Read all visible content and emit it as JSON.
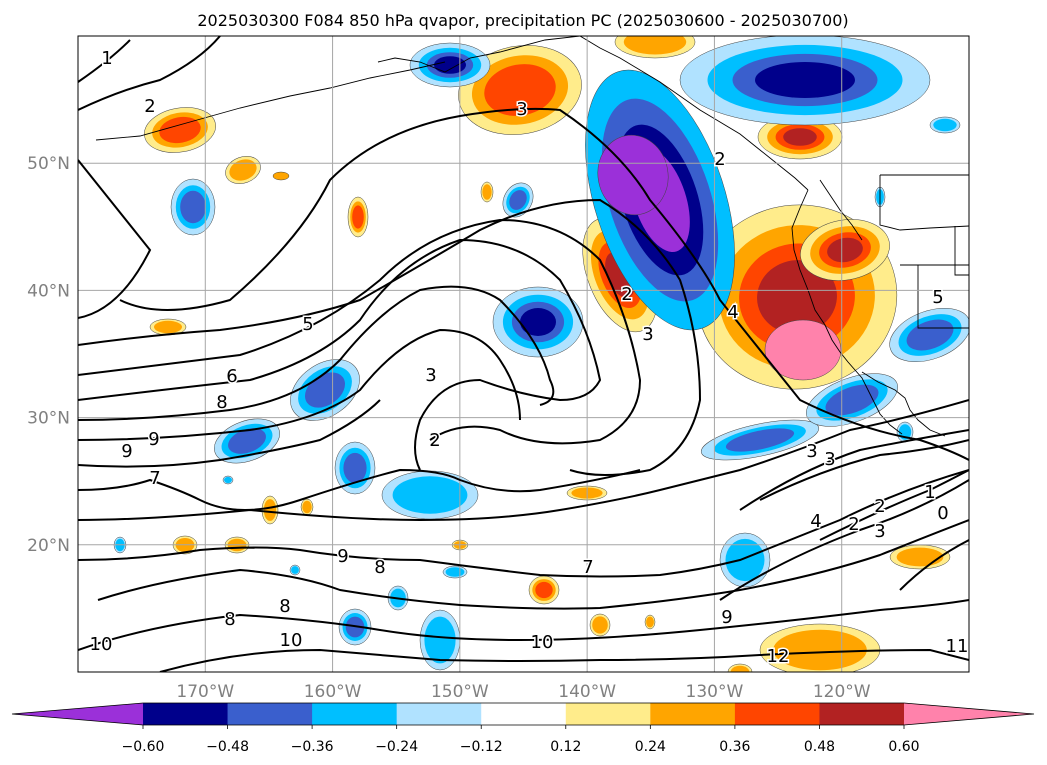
{
  "chart_data": {
    "type": "map-contour",
    "title": "2025030300 F084 850 hPa qvapor, precipitation PC (2025030600 - 2025030700)",
    "map": {
      "lon_range": [
        -180,
        -110
      ],
      "lat_range": [
        10,
        60
      ],
      "lon_ticks": [
        "170°W",
        "160°W",
        "150°W",
        "140°W",
        "130°W",
        "120°W"
      ],
      "lon_tick_values": [
        -170,
        -160,
        -150,
        -140,
        -130,
        -120
      ],
      "lat_ticks": [
        "20°N",
        "30°N",
        "40°N",
        "50°N"
      ],
      "lat_tick_values": [
        20,
        30,
        40,
        50
      ],
      "grid": true
    },
    "contour_labels": [
      "1",
      "2",
      "3",
      "2",
      "3",
      "4",
      "5",
      "6",
      "8",
      "9",
      "9",
      "7",
      "3",
      "2",
      "2",
      "3",
      "3",
      "2",
      "4",
      "2",
      "3",
      "5",
      "1",
      "0",
      "8",
      "8",
      "9",
      "8",
      "7",
      "10",
      "10",
      "10",
      "9",
      "12",
      "11"
    ],
    "colorbar": {
      "orientation": "horizontal",
      "extend": "both",
      "tick_labels": [
        "−0.60",
        "−0.48",
        "−0.36",
        "−0.24",
        "−0.12",
        "0.12",
        "0.24",
        "0.36",
        "0.48",
        "0.60"
      ],
      "boundaries": [
        -0.6,
        -0.48,
        -0.36,
        -0.24,
        -0.12,
        0.12,
        0.24,
        0.36,
        0.48,
        0.6
      ],
      "colors": [
        "#9b30d9",
        "#00008b",
        "#3a5fcd",
        "#00bfff",
        "#b0e2ff",
        "#ffffff",
        "#ffec8b",
        "#ffa500",
        "#ff4500",
        "#b22222",
        "#ff82ab"
      ]
    }
  }
}
